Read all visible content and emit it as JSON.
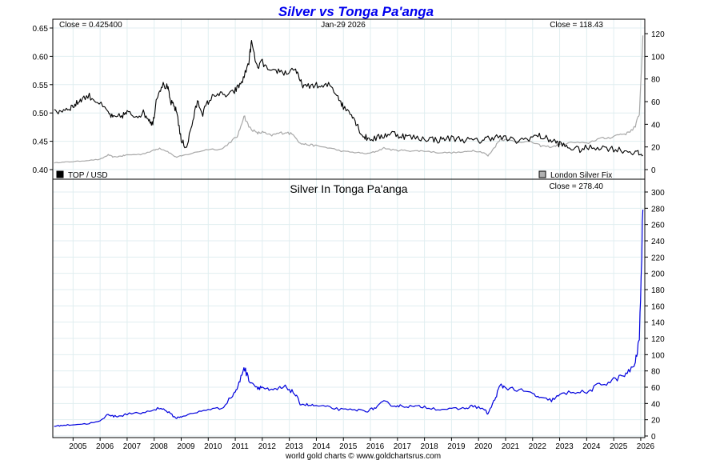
{
  "chart_data": [
    {
      "type": "line",
      "title": "Silver vs Tonga Pa'anga",
      "date_label": "Jan-29 2026",
      "left_close_label": "Close = 0.425400",
      "right_close_label": "Close = 118.43",
      "ylim_left": [
        0.4,
        0.65
      ],
      "ylim_right": [
        0,
        125
      ],
      "left_ticks": [
        "0.40",
        "0.45",
        "0.50",
        "0.55",
        "0.60",
        "0.65"
      ],
      "right_ticks": [
        "0",
        "20",
        "40",
        "60",
        "80",
        "100",
        "120"
      ],
      "grid": true,
      "series": [
        {
          "name": "TOP / USD",
          "axis": "left",
          "color": "#000000",
          "x": [
            2004.3,
            2004.6,
            2004.9,
            2005.1,
            2005.3,
            2005.6,
            2005.9,
            2006.3,
            2006.5,
            2006.8,
            2007.0,
            2007.3,
            2007.6,
            2007.8,
            2007.95,
            2008.1,
            2008.3,
            2008.5,
            2008.6,
            2008.75,
            2008.85,
            2009.0,
            2009.2,
            2009.4,
            2009.6,
            2009.8,
            2010.0,
            2010.3,
            2010.6,
            2010.9,
            2011.1,
            2011.3,
            2011.5,
            2011.6,
            2011.8,
            2012.0,
            2012.3,
            2012.6,
            2012.9,
            2013.2,
            2013.4,
            2013.6,
            2013.9,
            2014.2,
            2014.5,
            2014.8,
            2015.0,
            2015.3,
            2015.5,
            2015.7,
            2015.9,
            2016.2,
            2016.5,
            2016.8,
            2017.1,
            2017.4,
            2017.8,
            2018.2,
            2018.5,
            2018.8,
            2019.2,
            2019.6,
            2020.0,
            2020.3,
            2020.6,
            2021.0,
            2021.4,
            2021.8,
            2022.2,
            2022.5,
            2022.8,
            2023.0,
            2023.3,
            2023.7,
            2024.0,
            2024.4,
            2024.8,
            2025.2,
            2025.6,
            2025.9,
            2026.08
          ],
          "values": [
            0.5,
            0.505,
            0.51,
            0.515,
            0.525,
            0.53,
            0.52,
            0.5,
            0.49,
            0.495,
            0.5,
            0.495,
            0.5,
            0.49,
            0.48,
            0.53,
            0.55,
            0.545,
            0.52,
            0.51,
            0.5,
            0.45,
            0.44,
            0.48,
            0.52,
            0.5,
            0.52,
            0.535,
            0.53,
            0.535,
            0.545,
            0.56,
            0.59,
            0.625,
            0.58,
            0.59,
            0.57,
            0.575,
            0.57,
            0.58,
            0.555,
            0.545,
            0.55,
            0.545,
            0.55,
            0.53,
            0.51,
            0.5,
            0.48,
            0.46,
            0.455,
            0.455,
            0.46,
            0.465,
            0.46,
            0.458,
            0.455,
            0.455,
            0.452,
            0.455,
            0.455,
            0.452,
            0.45,
            0.455,
            0.458,
            0.455,
            0.45,
            0.455,
            0.46,
            0.455,
            0.45,
            0.445,
            0.44,
            0.435,
            0.438,
            0.44,
            0.438,
            0.435,
            0.432,
            0.428,
            0.425
          ]
        },
        {
          "name": "London Silver Fix",
          "axis": "right",
          "color": "#a8a8a8",
          "x": [
            2004.3,
            2004.6,
            2005.0,
            2005.5,
            2006.0,
            2006.3,
            2006.5,
            2006.8,
            2007.0,
            2007.5,
            2008.0,
            2008.2,
            2008.5,
            2008.8,
            2009.0,
            2009.5,
            2010.0,
            2010.5,
            2010.9,
            2011.1,
            2011.32,
            2011.5,
            2011.8,
            2012.0,
            2012.3,
            2012.6,
            2012.9,
            2013.2,
            2013.4,
            2013.7,
            2014.0,
            2014.5,
            2015.0,
            2015.5,
            2015.9,
            2016.2,
            2016.5,
            2016.9,
            2017.2,
            2017.6,
            2018.0,
            2018.5,
            2019.0,
            2019.5,
            2019.8,
            2020.2,
            2020.35,
            2020.6,
            2020.8,
            2021.0,
            2021.5,
            2022.0,
            2022.3,
            2022.7,
            2023.0,
            2023.5,
            2024.0,
            2024.4,
            2024.8,
            2025.2,
            2025.5,
            2025.8,
            2025.95,
            2026.08
          ],
          "values": [
            6,
            6.5,
            7,
            8,
            9,
            13,
            11,
            12,
            13,
            13.5,
            17,
            19,
            16,
            11,
            12,
            15,
            18,
            18,
            26,
            30,
            48,
            38,
            32,
            33,
            30,
            32,
            33,
            30,
            23,
            22,
            21,
            19,
            16,
            15,
            14,
            16,
            19,
            17,
            17,
            16.5,
            16.5,
            15,
            15,
            15.5,
            17,
            15,
            12,
            20,
            27,
            26,
            25,
            24,
            21,
            20,
            22,
            24,
            23,
            27,
            28,
            31,
            32,
            38,
            50,
            118.43
          ]
        }
      ]
    },
    {
      "type": "line",
      "title": "Silver In Tonga Pa'anga",
      "close_label": "Close = 278.40",
      "ylim": [
        0,
        300
      ],
      "y_ticks": [
        "0",
        "20",
        "40",
        "60",
        "80",
        "100",
        "120",
        "140",
        "160",
        "180",
        "200",
        "220",
        "240",
        "260",
        "280",
        "300"
      ],
      "grid": true,
      "series": [
        {
          "name": "Silver In Tonga Pa'anga",
          "color": "#0000dd",
          "x": [
            2004.3,
            2004.6,
            2005.0,
            2005.5,
            2006.0,
            2006.3,
            2006.5,
            2006.8,
            2007.0,
            2007.5,
            2008.0,
            2008.2,
            2008.5,
            2008.8,
            2009.0,
            2009.5,
            2010.0,
            2010.5,
            2010.9,
            2011.1,
            2011.32,
            2011.5,
            2011.8,
            2012.0,
            2012.3,
            2012.6,
            2012.9,
            2013.2,
            2013.4,
            2013.7,
            2014.0,
            2014.5,
            2015.0,
            2015.5,
            2015.9,
            2016.2,
            2016.5,
            2016.9,
            2017.2,
            2017.6,
            2018.0,
            2018.5,
            2019.0,
            2019.5,
            2019.8,
            2020.2,
            2020.35,
            2020.6,
            2020.8,
            2021.0,
            2021.5,
            2022.0,
            2022.3,
            2022.7,
            2023.0,
            2023.5,
            2024.0,
            2024.4,
            2024.8,
            2025.2,
            2025.5,
            2025.8,
            2025.95,
            2026.08
          ],
          "values": [
            12,
            13,
            14,
            15,
            18,
            27,
            24,
            25,
            27,
            28,
            32,
            35,
            30,
            22,
            24,
            28,
            33,
            34,
            50,
            60,
            85,
            70,
            60,
            60,
            55,
            58,
            60,
            52,
            40,
            38,
            37,
            35,
            32,
            32,
            31,
            35,
            42,
            37,
            37,
            36,
            36,
            33,
            33,
            34,
            37,
            33,
            27,
            45,
            62,
            60,
            56,
            52,
            46,
            44,
            50,
            55,
            53,
            62,
            66,
            72,
            76,
            90,
            120,
            278.4
          ]
        }
      ]
    }
  ],
  "x_axis": {
    "xlim": [
      2004.25,
      2026.15
    ],
    "year_ticks": [
      2005,
      2006,
      2007,
      2008,
      2009,
      2010,
      2011,
      2012,
      2013,
      2014,
      2015,
      2016,
      2017,
      2018,
      2019,
      2020,
      2021,
      2022,
      2023,
      2024,
      2025,
      2026
    ]
  },
  "legend": {
    "top_left": "TOP / USD",
    "top_right": "London Silver Fix"
  },
  "colors": {
    "title": "#0000ee",
    "grid": "#e0eef0",
    "frame": "#000000"
  },
  "footer": "world gold charts © www.goldchartsrus.com"
}
